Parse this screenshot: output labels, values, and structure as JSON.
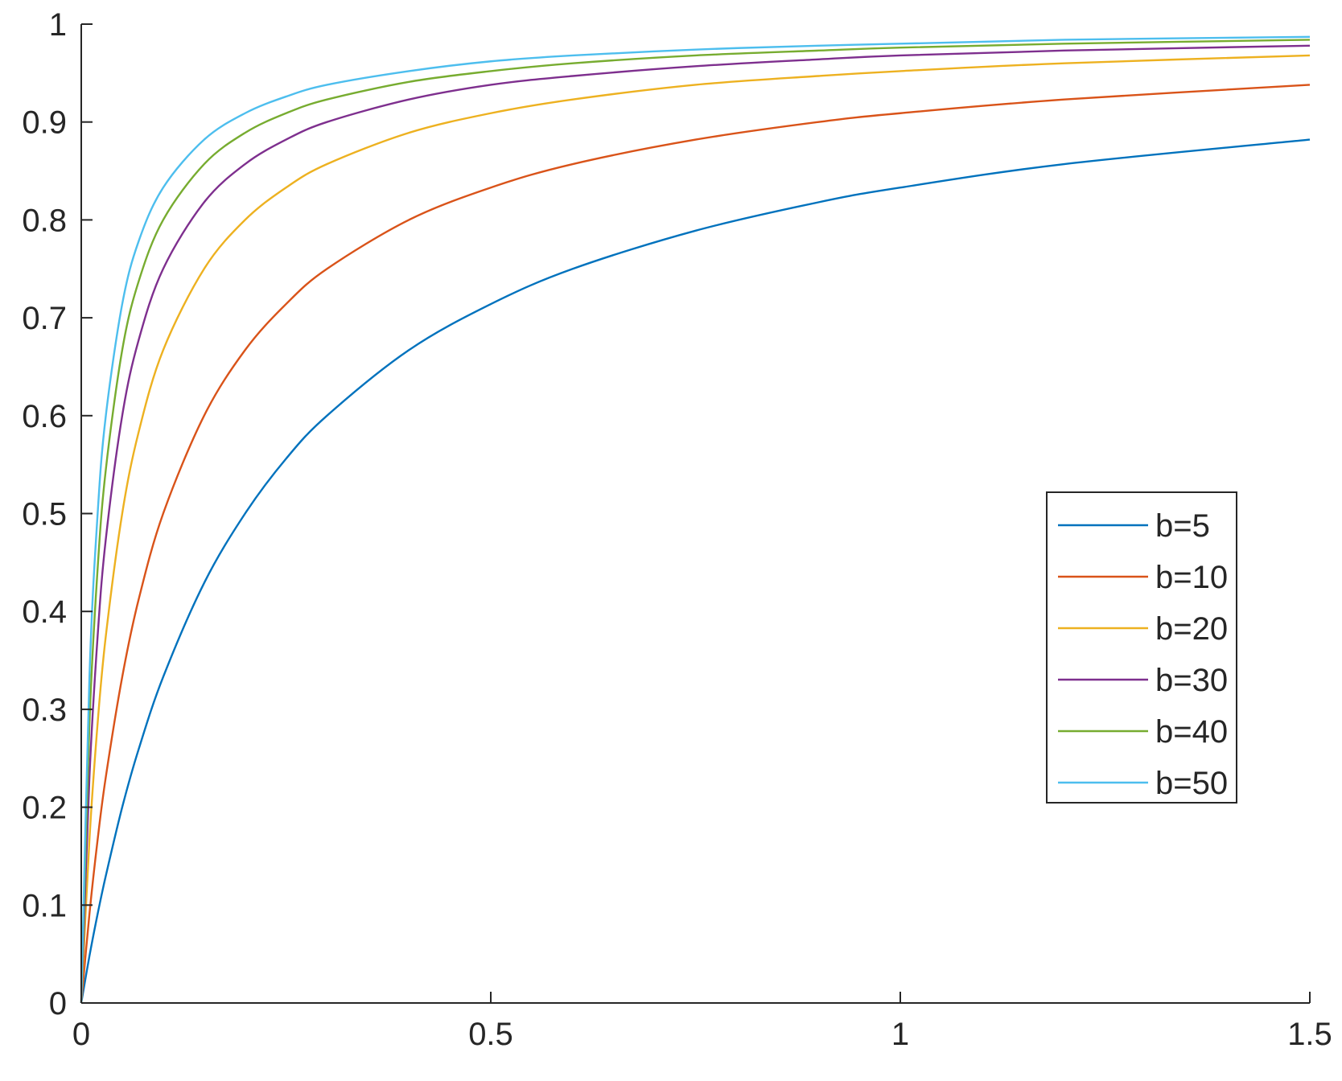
{
  "chart_data": {
    "type": "line",
    "title": "",
    "xlabel": "",
    "ylabel": "",
    "xlim": [
      0,
      1.5
    ],
    "ylim": [
      0,
      1
    ],
    "x_ticks": [
      "0",
      "0.5",
      "1",
      "1.5"
    ],
    "y_ticks": [
      "0",
      "0.1",
      "0.2",
      "0.3",
      "0.4",
      "0.5",
      "0.6",
      "0.7",
      "0.8",
      "0.9",
      "1"
    ],
    "grid": false,
    "legend_position": "right",
    "x": [
      0,
      0.01,
      0.02,
      0.03,
      0.05,
      0.07,
      0.1,
      0.15,
      0.2,
      0.25,
      0.3,
      0.4,
      0.5,
      0.6,
      0.75,
      0.9,
      1.0,
      1.2,
      1.5
    ],
    "series": [
      {
        "name": "b=5",
        "color": "#0072BD",
        "values": [
          0,
          0.048,
          0.091,
          0.13,
          0.2,
          0.259,
          0.333,
          0.429,
          0.5,
          0.556,
          0.6,
          0.667,
          0.714,
          0.75,
          0.789,
          0.818,
          0.833,
          0.857,
          0.882
        ]
      },
      {
        "name": "b=10",
        "color": "#D95319",
        "values": [
          0,
          0.091,
          0.167,
          0.231,
          0.333,
          0.412,
          0.5,
          0.6,
          0.667,
          0.714,
          0.75,
          0.8,
          0.833,
          0.857,
          0.882,
          0.9,
          0.909,
          0.923,
          0.938
        ]
      },
      {
        "name": "b=20",
        "color": "#EDB120",
        "values": [
          0,
          0.167,
          0.286,
          0.375,
          0.5,
          0.583,
          0.667,
          0.75,
          0.8,
          0.833,
          0.857,
          0.889,
          0.909,
          0.923,
          0.938,
          0.947,
          0.952,
          0.96,
          0.968
        ]
      },
      {
        "name": "b=30",
        "color": "#7E2F8E",
        "values": [
          0,
          0.231,
          0.375,
          0.474,
          0.6,
          0.677,
          0.75,
          0.818,
          0.857,
          0.882,
          0.9,
          0.923,
          0.938,
          0.947,
          0.957,
          0.964,
          0.968,
          0.973,
          0.978
        ]
      },
      {
        "name": "b=40",
        "color": "#77AC30",
        "values": [
          0,
          0.286,
          0.444,
          0.545,
          0.667,
          0.737,
          0.8,
          0.857,
          0.889,
          0.909,
          0.923,
          0.941,
          0.952,
          0.96,
          0.968,
          0.973,
          0.976,
          0.98,
          0.984
        ]
      },
      {
        "name": "b=50",
        "color": "#4DBEEE",
        "values": [
          0,
          0.333,
          0.5,
          0.6,
          0.714,
          0.778,
          0.833,
          0.882,
          0.909,
          0.926,
          0.938,
          0.952,
          0.962,
          0.968,
          0.974,
          0.978,
          0.98,
          0.984,
          0.987
        ]
      }
    ]
  }
}
